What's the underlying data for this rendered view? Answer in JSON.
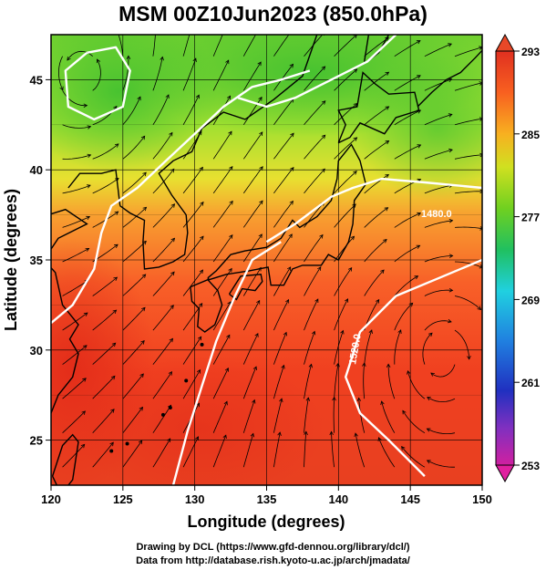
{
  "title": "MSM 00Z10Jun2023 (850.0hPa)",
  "xaxis": {
    "label": "Longitude (degrees)",
    "ticks": [
      "120",
      "125",
      "130",
      "135",
      "140",
      "145",
      "150"
    ],
    "range": [
      120,
      150
    ]
  },
  "yaxis": {
    "label": "Latitude  (degrees)",
    "ticks": [
      "25",
      "30",
      "35",
      "40",
      "45"
    ],
    "range": [
      22.5,
      47.5
    ]
  },
  "colorbar": {
    "labels": [
      "293",
      "285",
      "277",
      "269",
      "261",
      "253"
    ],
    "range": [
      253,
      293
    ],
    "colors": [
      "#d02080",
      "#8040c0",
      "#2030c0",
      "#2090e0",
      "#20d0e0",
      "#20c060",
      "#60d020",
      "#b0e020",
      "#f0e020",
      "#f8a020",
      "#f86020",
      "#e03020"
    ]
  },
  "contour_labels": [
    "1480.0",
    "1520.0"
  ],
  "footer": {
    "line1": "Drawing by DCL (https://www.gfd-dennou.org/library/dcl/)",
    "line2": "Data from http://database.rish.kyoto-u.ac.jp/arch/jmadata/"
  }
}
